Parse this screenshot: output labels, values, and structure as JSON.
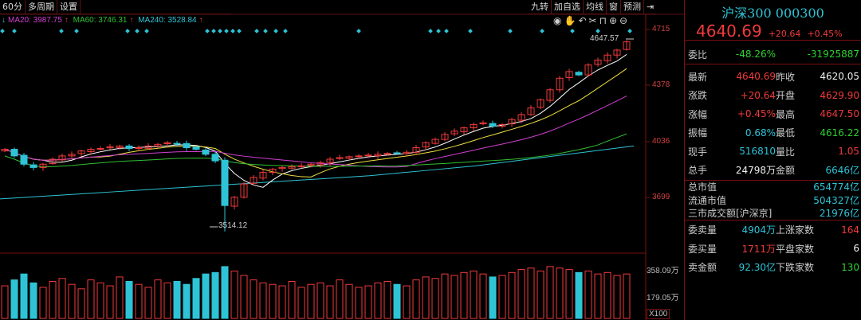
{
  "toolbar_left": [
    "60分",
    "多周期",
    "设置"
  ],
  "toolbar_right": [
    "九转",
    "加自选",
    "均线",
    "窗",
    "预测"
  ],
  "chart_tools": [
    "eye-icon",
    "hand-icon",
    "undo-icon",
    "scissors-icon",
    "lock-icon",
    "zoom-in-icon",
    "zoom-out-icon"
  ],
  "legend": {
    "ma20": "MA20: 3987.75",
    "ma60": "MA60: 3746.31",
    "ma240": "MA240: 3528.84",
    "arrow": "↑"
  },
  "axis": {
    "price_ticks": [
      "4715",
      "4378",
      "4036",
      "3699"
    ],
    "volume_ticks": [
      "358.09万",
      "179.05万"
    ],
    "multiplier": "X100"
  },
  "annotations": {
    "high": "4647.57",
    "low": "3514.12"
  },
  "chart_data": {
    "type": "candlestick",
    "price_range": [
      3460,
      4760
    ],
    "closes": [
      3990,
      3950,
      3900,
      3880,
      3900,
      3930,
      3950,
      3960,
      3980,
      3990,
      3995,
      4005,
      4010,
      3995,
      4000,
      4010,
      4020,
      4030,
      4025,
      4000,
      3990,
      3960,
      3920,
      3650,
      3700,
      3780,
      3820,
      3850,
      3870,
      3880,
      3885,
      3890,
      3900,
      3910,
      3930,
      3940,
      3945,
      3950,
      3955,
      3960,
      3965,
      3968,
      3972,
      4000,
      4030,
      4050,
      4080,
      4100,
      4120,
      4140,
      4150,
      4130,
      4140,
      4170,
      4200,
      4240,
      4290,
      4350,
      4420,
      4460,
      4440,
      4500,
      4530,
      4560,
      4590,
      4640
    ],
    "volumes_wan": [
      220,
      260,
      300,
      240,
      210,
      250,
      270,
      230,
      200,
      260,
      240,
      220,
      280,
      250,
      230,
      210,
      260,
      240,
      250,
      230,
      270,
      300,
      310,
      350,
      320,
      290,
      260,
      240,
      230,
      220,
      250,
      210,
      230,
      240,
      220,
      260,
      230,
      210,
      220,
      240,
      250,
      230,
      220,
      260,
      280,
      270,
      300,
      290,
      310,
      320,
      300,
      280,
      290,
      310,
      330,
      340,
      320,
      350,
      340,
      330,
      310,
      320,
      300,
      310,
      290,
      300
    ],
    "ma240": [
      3690,
      3710,
      3730,
      3750,
      3770,
      3790,
      3810,
      3830,
      3860,
      3890,
      3930,
      3970,
      4010
    ],
    "volume_max_wan": 430,
    "colors": {
      "up": "#f03a3a",
      "down": "#2ec4d6",
      "ma5": "#ffffff",
      "ma10": "#f0e040",
      "ma20": "#d040d0",
      "ma60": "#30c030",
      "ma240": "#2ec4d6"
    }
  },
  "panel": {
    "title": "沪深300 000300",
    "price": "4640.69",
    "change": "+20.64",
    "pct": "+0.45%",
    "weibi": {
      "label": "委比",
      "pct": "-48.26%",
      "diff": "-31925887"
    },
    "rows": [
      {
        "l": "最新",
        "v": "4640.69",
        "c": "red",
        "l2": "昨收",
        "v2": "4620.05",
        "c2": "wht"
      },
      {
        "l": "涨跌",
        "v": "+20.64",
        "c": "red",
        "l2": "开盘",
        "v2": "4629.90",
        "c2": "red"
      },
      {
        "l": "涨幅",
        "v": "+0.45%",
        "c": "red",
        "l2": "最高",
        "v2": "4647.50",
        "c2": "red"
      },
      {
        "l": "振幅",
        "v": "0.68%",
        "c": "cyn",
        "l2": "最低",
        "v2": "4616.22",
        "c2": "grn"
      },
      {
        "l": "现手",
        "v": "516810",
        "c": "cyn",
        "l2": "量比",
        "v2": "1.05",
        "c2": "red"
      },
      {
        "l": "总手",
        "v": "24798万",
        "c": "wht",
        "l2": "金额",
        "v2": "6646亿",
        "c2": "cyn"
      }
    ],
    "market": [
      {
        "l": "总市值",
        "v": "654774亿"
      },
      {
        "l": "流通市值",
        "v": "504327亿"
      },
      {
        "l": "三市成交额[沪深京]",
        "v": "21976亿"
      }
    ],
    "orders": [
      {
        "l": "委卖量",
        "v": "4904万",
        "c": "cyn",
        "l2": "上涨家数",
        "v2": "164",
        "c2": "red"
      },
      {
        "l": "委买量",
        "v": "1711万",
        "c": "red",
        "l2": "平盘家数",
        "v2": "6",
        "c2": "wht"
      },
      {
        "l": "卖金额",
        "v": "92.30亿",
        "c": "cyn",
        "l2": "下跌家数",
        "v2": "130",
        "c2": "grn"
      }
    ]
  }
}
